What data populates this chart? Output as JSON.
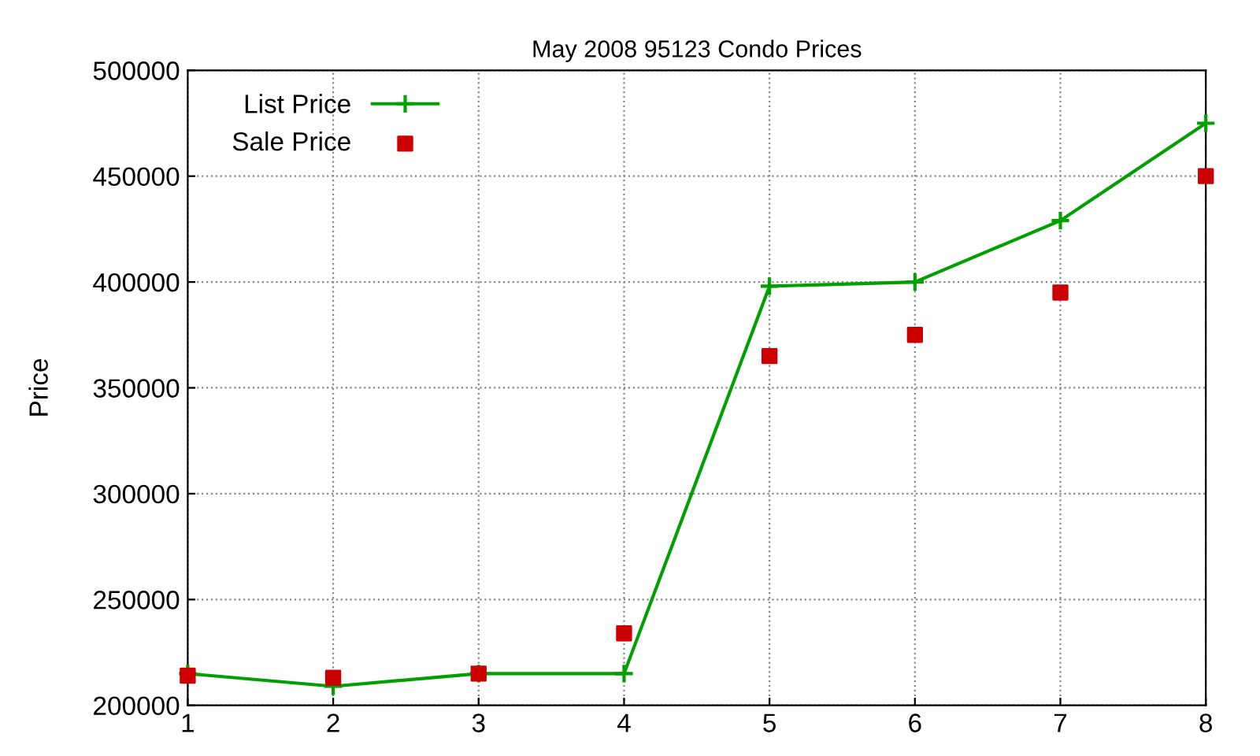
{
  "chart_data": {
    "type": "line",
    "title": "May 2008 95123 Condo Prices",
    "ylabel": "Price",
    "x": [
      1,
      2,
      3,
      4,
      5,
      6,
      7,
      8
    ],
    "series": [
      {
        "name": "List Price",
        "color": "#00a000",
        "marker": "cross",
        "values": [
          215000,
          209000,
          215000,
          215000,
          398000,
          400000,
          429000,
          475000
        ]
      },
      {
        "name": "Sale Price",
        "color": "#cc0000",
        "type": "scatter",
        "marker": "square",
        "values": [
          214000,
          213000,
          215000,
          234000,
          365000,
          375000,
          395000,
          450000
        ]
      }
    ],
    "xlim": [
      1,
      8
    ],
    "xticks": [
      1,
      2,
      3,
      4,
      5,
      6,
      7,
      8
    ],
    "ylim": [
      200000,
      500000
    ],
    "yticks": [
      200000,
      250000,
      300000,
      350000,
      400000,
      450000,
      500000
    ],
    "grid": true,
    "legend": "top left"
  }
}
